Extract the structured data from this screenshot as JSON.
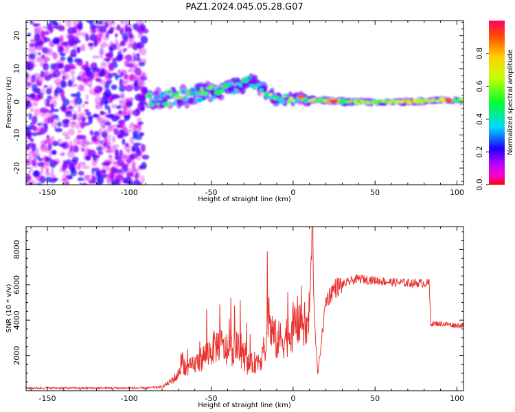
{
  "figure": {
    "title": "PAZ1.2024.045.05.28.G07"
  },
  "chart_data": [
    {
      "type": "heatmap",
      "xlabel": "Height of straight line (km)",
      "ylabel": "Frequency (Hz)",
      "xlim": [
        -163,
        104
      ],
      "ylim": [
        -25,
        24.5
      ],
      "x_ticks": [
        -150,
        -100,
        -50,
        0,
        50,
        100
      ],
      "y_ticks": [
        -20,
        -10,
        0,
        10,
        20
      ],
      "grid": false,
      "colormap": "gist_rainbow (red→magenta→blue→cyan→green→yellow→orange→red)",
      "colorbar": {
        "label": "Normalized spectral amplitude",
        "range": [
          0.0,
          1.0
        ],
        "ticks": [
          "0.0",
          "0.2",
          "0.4",
          "0.6",
          "0.8"
        ],
        "ticks_values": [
          0.0,
          0.2,
          0.4,
          0.6,
          0.8
        ]
      },
      "regions": [
        {
          "x_range": [
            -163,
            -90
          ],
          "freq_range": [
            -25,
            24.5
          ],
          "description": "scattered low-amplitude noise",
          "amplitude": 0.15
        },
        {
          "x_range": [
            -88,
            -20
          ],
          "freq_center": 1.5,
          "freq_spread": 6,
          "description": "spread strong signal",
          "amplitude": 0.45
        },
        {
          "x_range": [
            -20,
            10
          ],
          "freq_center": 1.5,
          "freq_spread": 3,
          "description": "converging signal",
          "amplitude": 0.55
        },
        {
          "x_range": [
            10,
            104
          ],
          "freq_center": 0,
          "freq_spread": 1.5,
          "description": "narrow stable carrier line",
          "amplitude": 0.9
        }
      ],
      "track": {
        "x": [
          -88,
          -80,
          -70,
          -60,
          -50,
          -40,
          -30,
          -25,
          -20,
          -15,
          -10,
          -5,
          0,
          5,
          10,
          20,
          30,
          50,
          70,
          90,
          104
        ],
        "freq": [
          0,
          1,
          1.5,
          2,
          3,
          4,
          5,
          6,
          4,
          2,
          1,
          1,
          0.5,
          1.5,
          0.5,
          0.5,
          0,
          0,
          0,
          0.5,
          0.5
        ]
      }
    },
    {
      "type": "line",
      "xlabel": "Height of straight line (km)",
      "ylabel": "SNR (10 * v/v)",
      "xlim": [
        -163,
        104
      ],
      "ylim": [
        0,
        9300
      ],
      "x_ticks": [
        -150,
        -100,
        -50,
        0,
        50,
        100
      ],
      "y_ticks": [
        2000,
        4000,
        6000,
        8000
      ],
      "grid": false,
      "series": [
        {
          "color": "#e8302c",
          "x": [
            -163,
            -140,
            -120,
            -100,
            -90,
            -85,
            -80,
            -75,
            -70,
            -68,
            -65,
            -60,
            -55,
            -50,
            -45,
            -40,
            -35,
            -30,
            -28,
            -25,
            -20,
            -16,
            -15,
            -14,
            -10,
            -5,
            0,
            3,
            5,
            8,
            10,
            11.5,
            12,
            12.5,
            13,
            15,
            20,
            25,
            30,
            35,
            40,
            45,
            50,
            55,
            60,
            70,
            80,
            83,
            84,
            90,
            95,
            100,
            104
          ],
          "y": [
            150,
            150,
            150,
            150,
            150,
            180,
            220,
            500,
            900,
            1800,
            1200,
            1500,
            1900,
            2300,
            2700,
            2100,
            2500,
            1900,
            1500,
            1500,
            1800,
            2600,
            5200,
            3500,
            2800,
            3000,
            3600,
            3900,
            4300,
            3300,
            4400,
            8700,
            9300,
            6000,
            4200,
            900,
            5100,
            5800,
            6000,
            6200,
            6350,
            6300,
            6250,
            6200,
            6150,
            6100,
            6100,
            6100,
            3800,
            3800,
            3750,
            3700,
            3700
          ],
          "noise_fraction": 0.25
        }
      ]
    }
  ]
}
